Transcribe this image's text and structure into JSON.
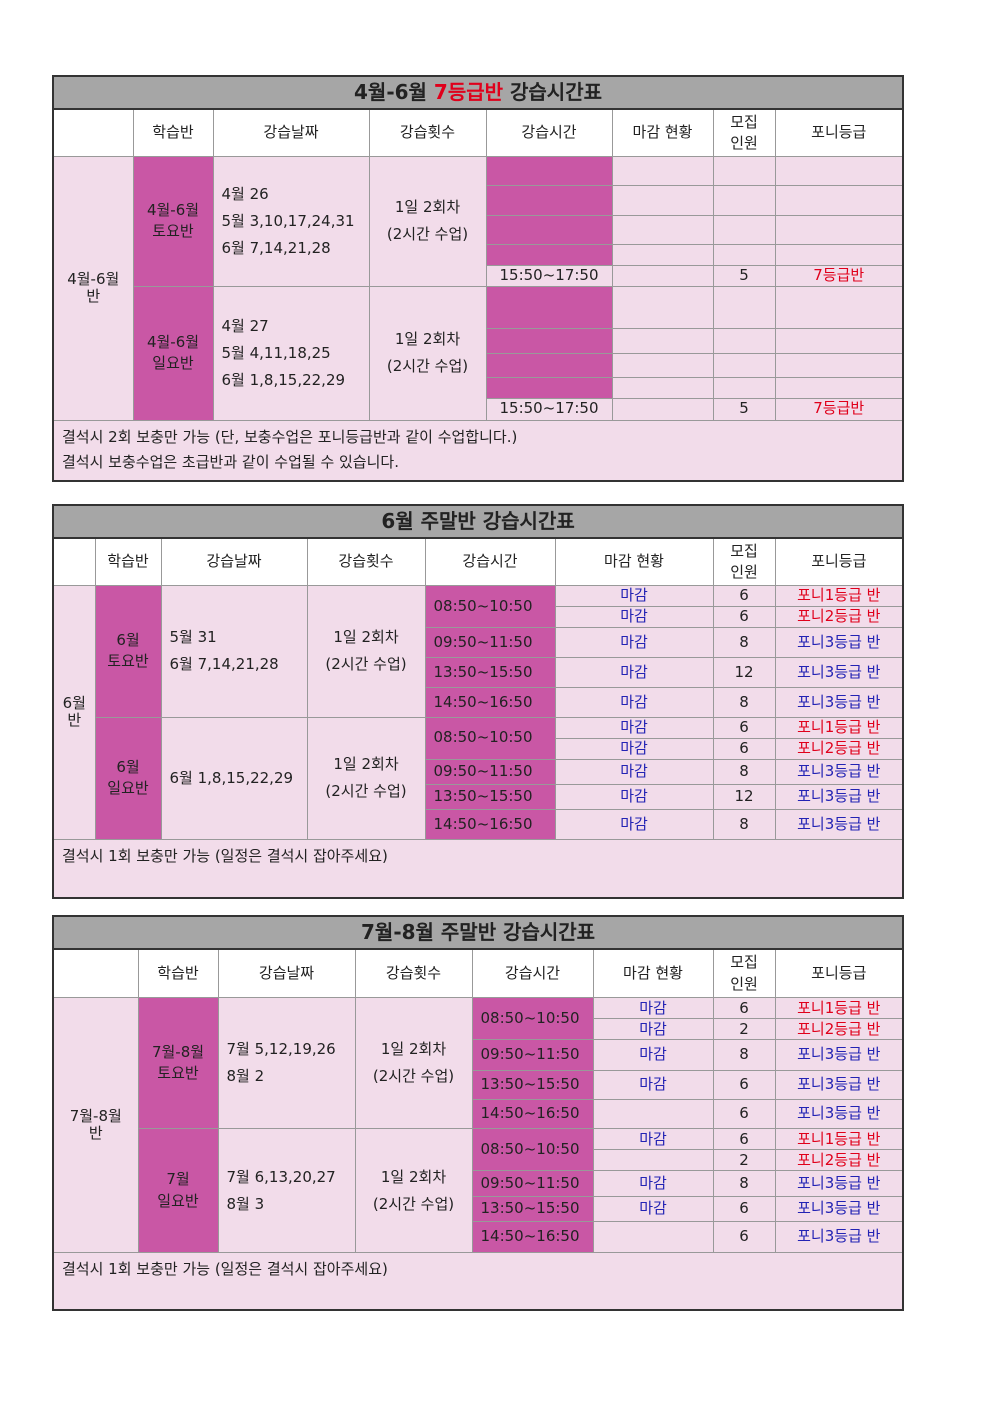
{
  "headers": {
    "class": "학습반",
    "dates": "강습날짜",
    "count": "강습횟수",
    "time": "강습시간",
    "status": "마감 현황",
    "recruit_1": "모집",
    "recruit_2": "인원",
    "grade": "포니등급"
  },
  "table1": {
    "title_a": "4월-6월",
    "title_b": "7등급반",
    "title_c": "강습시간표",
    "group_1": "4월-6월",
    "group_2": "반",
    "sat": {
      "class_1": "4월-6월",
      "class_2": "토요반",
      "dates": [
        "4월  26",
        "5월  3,10,17,24,31",
        "6월  7,14,21,28"
      ],
      "count_1": "1일  2회차",
      "count_2": "(2시간  수업)",
      "time": "15:50~17:50",
      "recruit": "5",
      "grade": "7등급반"
    },
    "sun": {
      "class_1": "4월-6월",
      "class_2": "일요반",
      "dates": [
        "4월  27",
        "5월  4,11,18,25",
        "6월  1,8,15,22,29"
      ],
      "count_1": "1일  2회차",
      "count_2": "(2시간  수업)",
      "time": "15:50~17:50",
      "recruit": "5",
      "grade": "7등급반"
    },
    "note_1": "결석시  2회  보충만  가능  (단,  보충수업은  포니등급반과  같이  수업합니다.)",
    "note_2": "결석시  보충수업은  초급반과  같이  수업될  수  있습니다."
  },
  "table2": {
    "title": "6월  주말반  강습시간표",
    "group_1": "6월",
    "group_2": "반",
    "sat": {
      "class_1": "6월",
      "class_2": "토요반",
      "dates": [
        "5월  31",
        "6월  7,14,21,28"
      ],
      "count_1": "1일  2회차",
      "count_2": "(2시간  수업)",
      "rows": [
        {
          "time": "08:50~10:50",
          "status": "마감",
          "recruit": "6",
          "grade": "포니1등급 반"
        },
        {
          "time": "",
          "status": "마감",
          "recruit": "6",
          "grade": "포니2등급 반"
        },
        {
          "time": "09:50~11:50",
          "status": "마감",
          "recruit": "8",
          "grade": "포니3등급 반"
        },
        {
          "time": "13:50~15:50",
          "status": "마감",
          "recruit": "12",
          "grade": "포니3등급 반"
        },
        {
          "time": "14:50~16:50",
          "status": "마감",
          "recruit": "8",
          "grade": "포니3등급 반"
        }
      ]
    },
    "sun": {
      "class_1": "6월",
      "class_2": "일요반",
      "dates": [
        "6월  1,8,15,22,29"
      ],
      "count_1": "1일  2회차",
      "count_2": "(2시간  수업)",
      "rows": [
        {
          "time": "08:50~10:50",
          "status": "마감",
          "recruit": "6",
          "grade": "포니1등급 반"
        },
        {
          "time": "",
          "status": "마감",
          "recruit": "6",
          "grade": "포니2등급 반"
        },
        {
          "time": "09:50~11:50",
          "status": "마감",
          "recruit": "8",
          "grade": "포니3등급 반"
        },
        {
          "time": "13:50~15:50",
          "status": "마감",
          "recruit": "12",
          "grade": "포니3등급 반"
        },
        {
          "time": "14:50~16:50",
          "status": "마감",
          "recruit": "8",
          "grade": "포니3등급 반"
        }
      ]
    },
    "note": "결석시  1회  보충만  가능  (일정은  결석시  잡아주세요)"
  },
  "table3": {
    "title": "7월-8월  주말반  강습시간표",
    "group_1": "7월-8월",
    "group_2": "반",
    "sat": {
      "class_1": "7월-8월",
      "class_2": "토요반",
      "dates": [
        "7월  5,12,19,26",
        "8월  2"
      ],
      "count_1": "1일  2회차",
      "count_2": "(2시간  수업)",
      "rows": [
        {
          "time": "08:50~10:50",
          "status": "마감",
          "recruit": "6",
          "grade": "포니1등급 반"
        },
        {
          "time": "",
          "status": "마감",
          "recruit": "2",
          "grade": "포니2등급 반"
        },
        {
          "time": "09:50~11:50",
          "status": "마감",
          "recruit": "8",
          "grade": "포니3등급 반"
        },
        {
          "time": "13:50~15:50",
          "status": "마감",
          "recruit": "6",
          "grade": "포니3등급 반"
        },
        {
          "time": "14:50~16:50",
          "status": "",
          "recruit": "6",
          "grade": "포니3등급 반"
        }
      ]
    },
    "sun": {
      "class_1": "7월",
      "class_2": "일요반",
      "dates": [
        "7월  6,13,20,27",
        "8월  3"
      ],
      "count_1": "1일  2회차",
      "count_2": "(2시간  수업)",
      "rows": [
        {
          "time": "08:50~10:50",
          "status": "마감",
          "recruit": "6",
          "grade": "포니1등급 반"
        },
        {
          "time": "",
          "status": "",
          "recruit": "2",
          "grade": "포니2등급 반"
        },
        {
          "time": "09:50~11:50",
          "status": "마감",
          "recruit": "8",
          "grade": "포니3등급 반"
        },
        {
          "time": "13:50~15:50",
          "status": "마감",
          "recruit": "6",
          "grade": "포니3등급 반"
        },
        {
          "time": "14:50~16:50",
          "status": "",
          "recruit": "6",
          "grade": "포니3등급 반"
        }
      ]
    },
    "note": "결석시  1회  보충만  가능  (일정은  결석시  잡아주세요)"
  },
  "colors": {
    "title_bg": "#a6a6a6",
    "pink": "#f2dcea",
    "magenta": "#c957a5",
    "red": "#e0001b",
    "blue": "#2323b4"
  }
}
